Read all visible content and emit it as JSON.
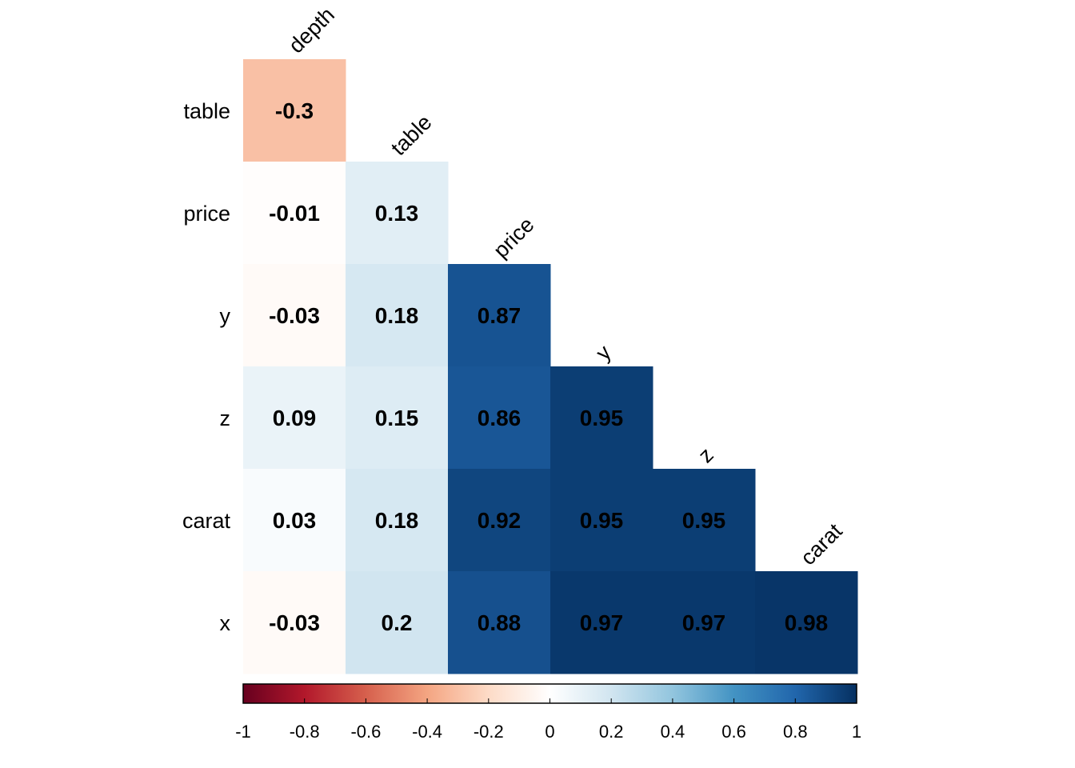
{
  "chart_data": {
    "type": "heatmap",
    "title": "",
    "variables": [
      "depth",
      "table",
      "price",
      "y",
      "z",
      "carat",
      "x"
    ],
    "row_labels": [
      "table",
      "price",
      "y",
      "z",
      "carat",
      "x"
    ],
    "column_labels": [
      "depth",
      "table",
      "price",
      "y",
      "z",
      "carat"
    ],
    "cells": [
      {
        "row": "table",
        "col": "depth",
        "value": -0.3,
        "label": "-0.3"
      },
      {
        "row": "price",
        "col": "depth",
        "value": -0.01,
        "label": "-0.01"
      },
      {
        "row": "price",
        "col": "table",
        "value": 0.13,
        "label": "0.13"
      },
      {
        "row": "y",
        "col": "depth",
        "value": -0.03,
        "label": "-0.03"
      },
      {
        "row": "y",
        "col": "table",
        "value": 0.18,
        "label": "0.18"
      },
      {
        "row": "y",
        "col": "price",
        "value": 0.87,
        "label": "0.87"
      },
      {
        "row": "z",
        "col": "depth",
        "value": 0.09,
        "label": "0.09"
      },
      {
        "row": "z",
        "col": "table",
        "value": 0.15,
        "label": "0.15"
      },
      {
        "row": "z",
        "col": "price",
        "value": 0.86,
        "label": "0.86"
      },
      {
        "row": "z",
        "col": "y",
        "value": 0.95,
        "label": "0.95"
      },
      {
        "row": "carat",
        "col": "depth",
        "value": 0.03,
        "label": "0.03"
      },
      {
        "row": "carat",
        "col": "table",
        "value": 0.18,
        "label": "0.18"
      },
      {
        "row": "carat",
        "col": "price",
        "value": 0.92,
        "label": "0.92"
      },
      {
        "row": "carat",
        "col": "y",
        "value": 0.95,
        "label": "0.95"
      },
      {
        "row": "carat",
        "col": "z",
        "value": 0.95,
        "label": "0.95"
      },
      {
        "row": "x",
        "col": "depth",
        "value": -0.03,
        "label": "-0.03"
      },
      {
        "row": "x",
        "col": "table",
        "value": 0.2,
        "label": "0.2"
      },
      {
        "row": "x",
        "col": "price",
        "value": 0.88,
        "label": "0.88"
      },
      {
        "row": "x",
        "col": "y",
        "value": 0.97,
        "label": "0.97"
      },
      {
        "row": "x",
        "col": "z",
        "value": 0.97,
        "label": "0.97"
      },
      {
        "row": "x",
        "col": "carat",
        "value": 0.98,
        "label": "0.98"
      }
    ],
    "color_scale": {
      "range": [
        -1,
        1
      ],
      "palette": [
        "#67001F",
        "#B2182B",
        "#D6604D",
        "#F4A582",
        "#FDDBC7",
        "#FFFFFF",
        "#D1E5F0",
        "#92C5DE",
        "#4393C3",
        "#2166AC",
        "#053061"
      ],
      "ticks": [
        -1,
        -0.8,
        -0.6,
        -0.4,
        -0.2,
        0,
        0.2,
        0.4,
        0.6,
        0.8,
        1
      ],
      "tick_labels": [
        "-1",
        "-0.8",
        "-0.6",
        "-0.4",
        "-0.2",
        "0",
        "0.2",
        "0.4",
        "0.6",
        "0.8",
        "1"
      ],
      "placement": "bottom"
    },
    "grid": false
  }
}
